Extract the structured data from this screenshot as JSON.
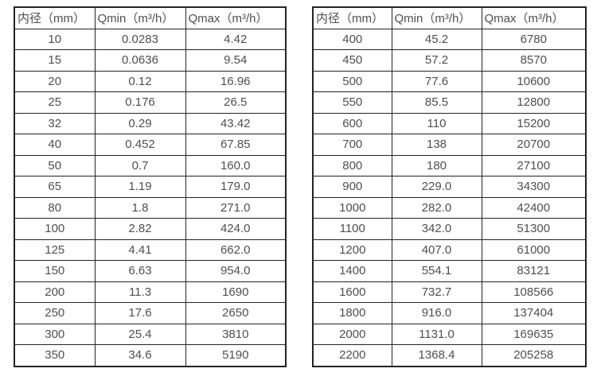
{
  "page": {
    "background_color": "#ffffff",
    "border_color": "#242424",
    "text_color": "#4f4f4f"
  },
  "tables": [
    {
      "name": "small-diameters",
      "headers": [
        "内径（mm）",
        "Qmin（m³/h）",
        "Qmax（m³/h）"
      ],
      "rows": [
        [
          "10",
          "0.0283",
          "4.42"
        ],
        [
          "15",
          "0.0636",
          "9.54"
        ],
        [
          "20",
          "0.12",
          "16.96"
        ],
        [
          "25",
          "0.176",
          "26.5"
        ],
        [
          "32",
          "0.29",
          "43.42"
        ],
        [
          "40",
          "0.452",
          "67.85"
        ],
        [
          "50",
          "0.7",
          "160.0"
        ],
        [
          "65",
          "1.19",
          "179.0"
        ],
        [
          "80",
          "1.8",
          "271.0"
        ],
        [
          "100",
          "2.82",
          "424.0"
        ],
        [
          "125",
          "4.41",
          "662.0"
        ],
        [
          "150",
          "6.63",
          "954.0"
        ],
        [
          "200",
          "11.3",
          "1690"
        ],
        [
          "250",
          "17.6",
          "2650"
        ],
        [
          "300",
          "25.4",
          "3810"
        ],
        [
          "350",
          "34.6",
          "5190"
        ]
      ]
    },
    {
      "name": "large-diameters",
      "headers": [
        "内径（mm）",
        "Qmin（m³/h）",
        "Qmax（m³/h）"
      ],
      "rows": [
        [
          "400",
          "45.2",
          "6780"
        ],
        [
          "450",
          "57.2",
          "8570"
        ],
        [
          "500",
          "77.6",
          "10600"
        ],
        [
          "550",
          "85.5",
          "12800"
        ],
        [
          "600",
          "110",
          "15200"
        ],
        [
          "700",
          "138",
          "20700"
        ],
        [
          "800",
          "180",
          "27100"
        ],
        [
          "900",
          "229.0",
          "34300"
        ],
        [
          "1000",
          "282.0",
          "42400"
        ],
        [
          "1100",
          "342.0",
          "51300"
        ],
        [
          "1200",
          "407.0",
          "61000"
        ],
        [
          "1400",
          "554.1",
          "83121"
        ],
        [
          "1600",
          "732.7",
          "108566"
        ],
        [
          "1800",
          "916.0",
          "137404"
        ],
        [
          "2000",
          "1131.0",
          "169635"
        ],
        [
          "2200",
          "1368.4",
          "205258"
        ]
      ]
    }
  ]
}
